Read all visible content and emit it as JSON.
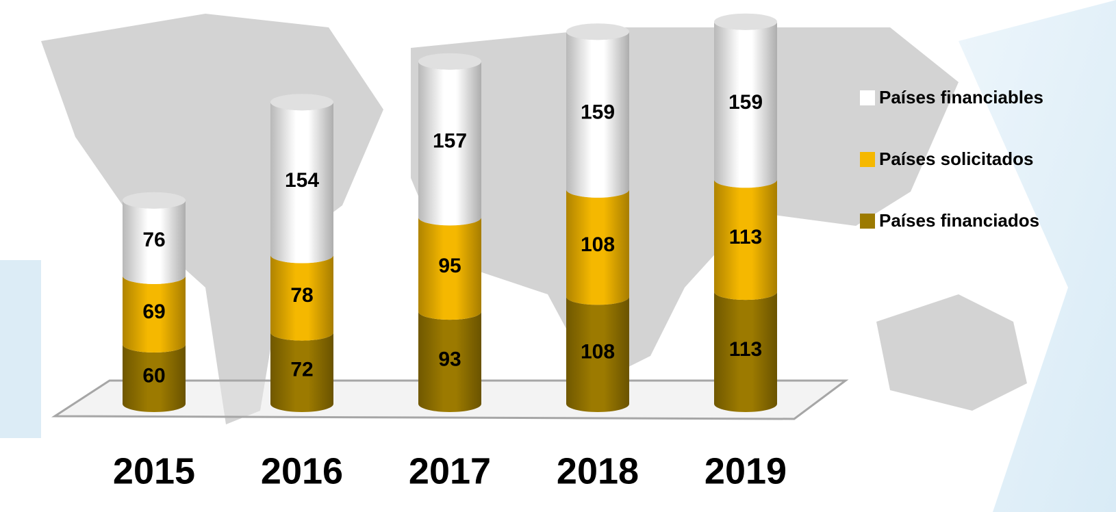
{
  "chart_data": {
    "type": "bar",
    "stacked": true,
    "categories": [
      "2015",
      "2016",
      "2017",
      "2018",
      "2019"
    ],
    "series": [
      {
        "name": "Países financiados",
        "color": "#9c7a00",
        "values": [
          60,
          72,
          93,
          108,
          113
        ]
      },
      {
        "name": "Países solicitados",
        "color": "#f5b800",
        "values": [
          69,
          78,
          95,
          108,
          113
        ]
      },
      {
        "name": "Países financiables",
        "color": "#ffffff",
        "values": [
          76,
          154,
          157,
          159,
          159
        ]
      }
    ],
    "legend": "right"
  }
}
